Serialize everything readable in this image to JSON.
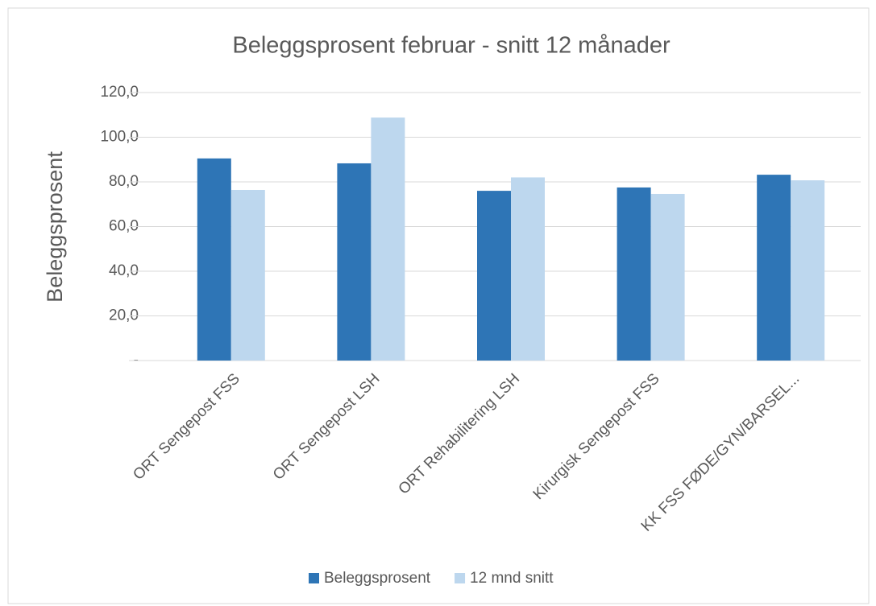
{
  "chart_data": {
    "type": "bar",
    "title": "Beleggsprosent februar  -  snitt 12 månader",
    "y_label": "Beleggsprosent",
    "categories": [
      "ORT Sengepost FSS",
      "ORT Sengepost LSH",
      "ORT Rehabilitering LSH",
      "Kirurgisk Sengepost FSS",
      "KK FSS FØDE/GYN/BARSEL..."
    ],
    "series": [
      {
        "name": "Beleggsprosent",
        "color": "#2e75b6",
        "values": [
          90.5,
          88.3,
          76,
          77.5,
          83.2
        ]
      },
      {
        "name": "12 mnd snitt",
        "color": "#bdd7ee",
        "values": [
          76.4,
          108.8,
          82,
          74.6,
          80.7
        ]
      }
    ],
    "ylim": [
      0,
      120
    ],
    "yticks": [
      {
        "value": 0,
        "label": "-"
      },
      {
        "value": 20,
        "label": "20,0"
      },
      {
        "value": 40,
        "label": "40,0"
      },
      {
        "value": 60,
        "label": "60,0"
      },
      {
        "value": 80,
        "label": "80,0"
      },
      {
        "value": 100,
        "label": "100,0"
      },
      {
        "value": 120,
        "label": "120,0"
      }
    ],
    "grid": true,
    "legend": "bottom"
  }
}
